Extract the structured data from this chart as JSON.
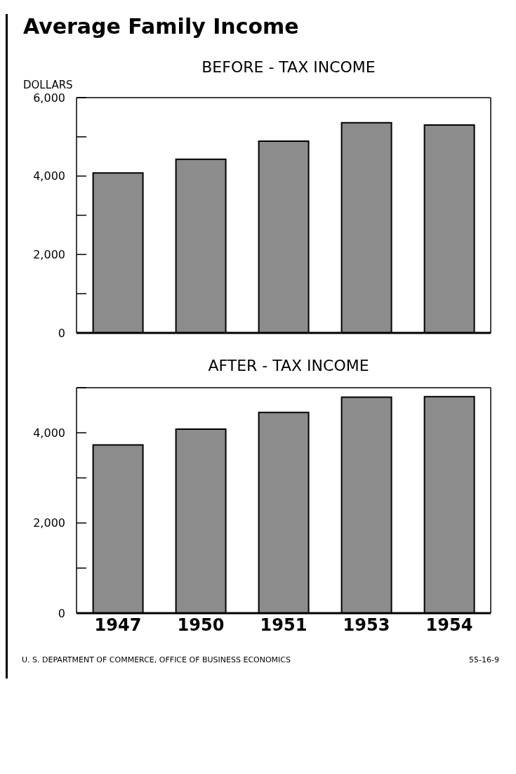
{
  "chart_data": [
    {
      "type": "bar",
      "title": "Average Family Income",
      "subtitle": "BEFORE - TAX INCOME",
      "ylabel": "DOLLARS",
      "categories": [
        "1947",
        "1950",
        "1951",
        "1953",
        "1954"
      ],
      "values": [
        4080,
        4430,
        4890,
        5360,
        5300
      ],
      "color": "#8c8c8c",
      "ylim": [
        0,
        6000
      ],
      "yticks": [
        0,
        {
          "value": 1000,
          "label": null
        },
        {
          "value": 2000,
          "label": "2,000"
        },
        {
          "value": 3000,
          "label": null
        },
        {
          "value": 4000,
          "label": "4,000"
        },
        {
          "value": 5000,
          "label": null
        },
        {
          "value": 6000,
          "label": "6,000"
        }
      ],
      "tick_labels": "y"
    },
    {
      "type": "bar",
      "title": "AFTER - TAX INCOME",
      "categories": [
        "1947",
        "1950",
        "1951",
        "1953",
        "1954"
      ],
      "values": [
        3730,
        4080,
        4450,
        4790,
        4800
      ],
      "color": "#8c8c8c",
      "ylim": [
        0,
        5000
      ],
      "yticks": [
        0,
        {
          "value": 1000,
          "label": null
        },
        {
          "value": 2000,
          "label": "2,000"
        },
        {
          "value": 3000,
          "label": null
        },
        {
          "value": 4000,
          "label": "4,000"
        },
        {
          "value": 5000,
          "label": null
        }
      ],
      "annotations": [
        "U. S. DEPARTMENT OF COMMERCE, OFFICE OF BUSINESS ECONOMICS",
        "55-16-9"
      ]
    }
  ]
}
